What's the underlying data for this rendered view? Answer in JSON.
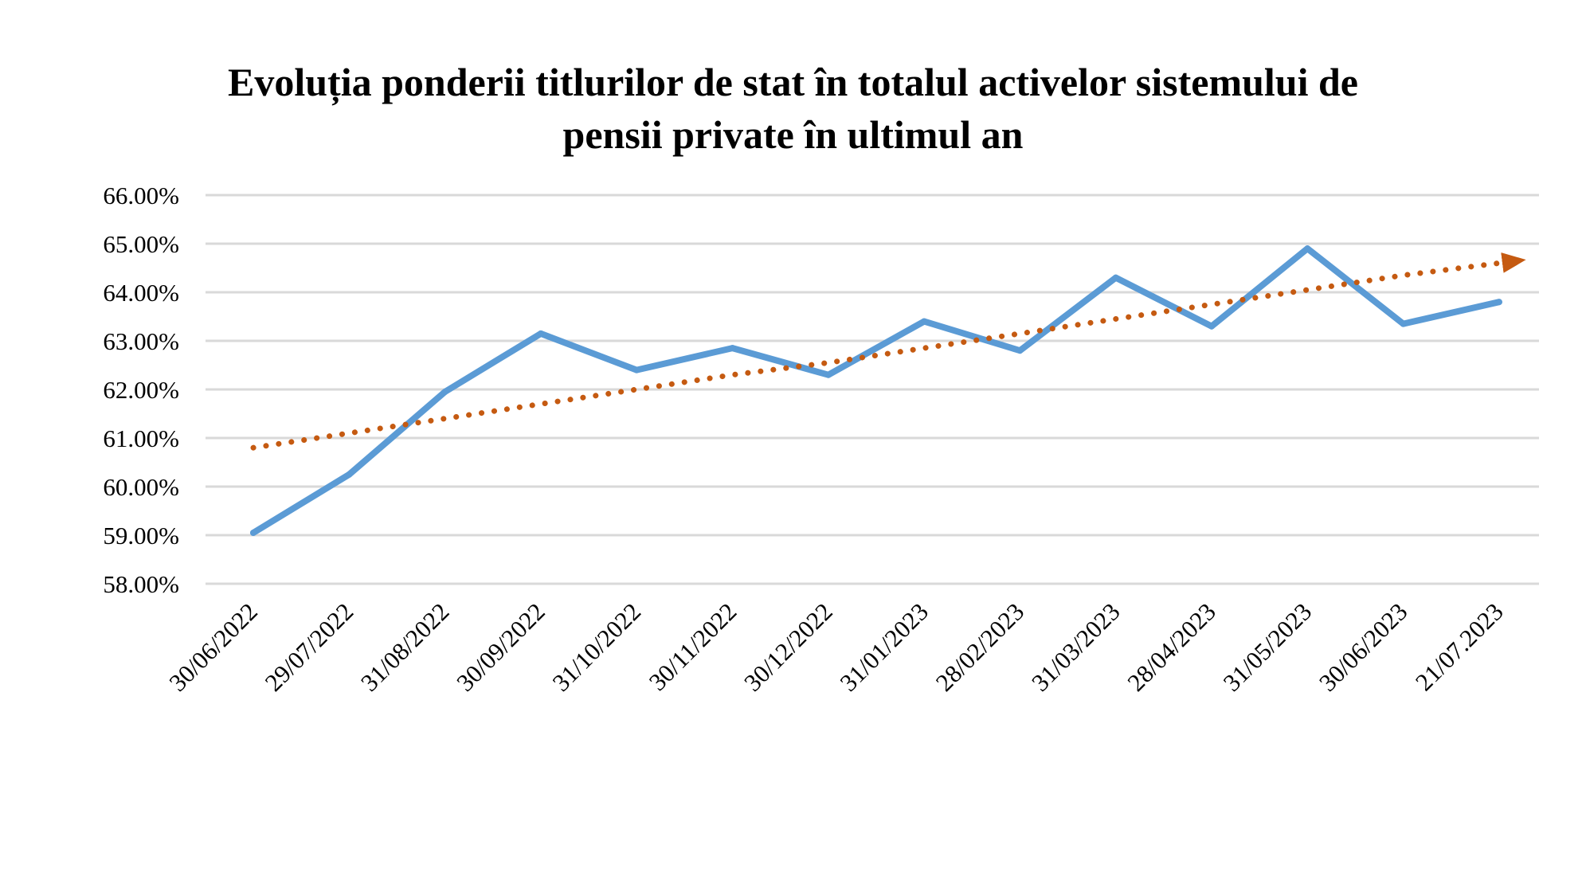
{
  "chart_data": {
    "type": "line",
    "title_lines": [
      "Evoluția ponderii titlurilor de stat în totalul activelor sistemului de",
      "pensii private în ultimul an"
    ],
    "categories": [
      "30/06/2022",
      "29/07/2022",
      "31/08/2022",
      "30/09/2022",
      "31/10/2022",
      "30/11/2022",
      "30/12/2022",
      "31/01/2023",
      "28/02/2023",
      "31/03/2023",
      "28/04/2023",
      "31/05/2023",
      "30/06/2023",
      "21/07.2023"
    ],
    "y_ticks": [
      "58.00%",
      "59.00%",
      "60.00%",
      "61.00%",
      "62.00%",
      "63.00%",
      "64.00%",
      "65.00%",
      "66.00%"
    ],
    "ylim": [
      58,
      66
    ],
    "y_unit": "%",
    "grid": true,
    "legend": "none",
    "series": [
      {
        "kind": "data",
        "color": "#5b9bd5",
        "values": [
          59.05,
          60.25,
          61.95,
          63.15,
          62.4,
          62.85,
          62.3,
          63.4,
          62.8,
          64.3,
          63.3,
          64.9,
          63.35,
          63.8
        ]
      },
      {
        "kind": "trendline",
        "style": "dotted-with-arrow",
        "color": "#c55a11",
        "values": [
          60.8,
          61.1,
          61.4,
          61.7,
          62.0,
          62.3,
          62.55,
          62.85,
          63.15,
          63.45,
          63.75,
          64.05,
          64.35,
          64.6
        ]
      }
    ]
  }
}
